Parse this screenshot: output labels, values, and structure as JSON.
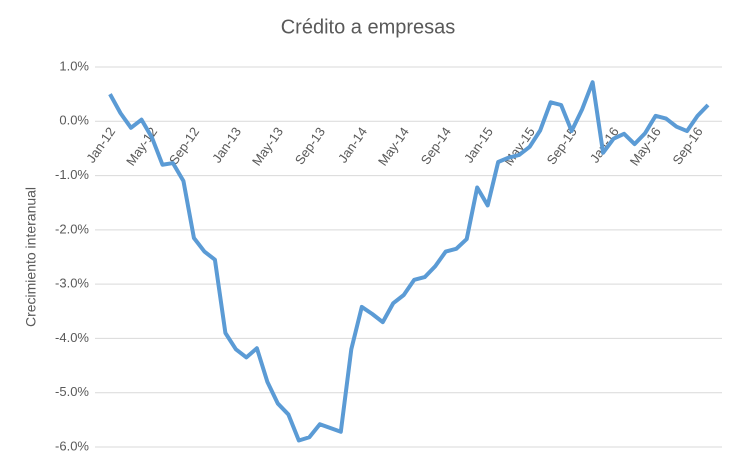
{
  "chart_data": {
    "type": "line",
    "title": "Crédito a empresas",
    "y_label": "Crecimiento interanual",
    "categories": [
      "Jan-12",
      null,
      null,
      null,
      "May-12",
      null,
      null,
      null,
      "Sep-12",
      null,
      null,
      null,
      "Jan-13",
      null,
      null,
      null,
      "May-13",
      null,
      null,
      null,
      "Sep-13",
      null,
      null,
      null,
      "Jan-14",
      null,
      null,
      null,
      "May-14",
      null,
      null,
      null,
      "Sep-14",
      null,
      null,
      null,
      "Jan-15",
      null,
      null,
      null,
      "May-15",
      null,
      null,
      null,
      "Sep-15",
      null,
      null,
      null,
      "Jan-16",
      null,
      null,
      null,
      "May-16",
      null,
      null,
      null,
      "Sep-16",
      null
    ],
    "series": [
      {
        "color": "#5b9bd5",
        "values": [
          0.5,
          0.15,
          -0.12,
          0.03,
          -0.3,
          -0.8,
          -0.77,
          -1.1,
          -2.15,
          -2.4,
          -2.55,
          -3.9,
          -4.2,
          -4.35,
          -4.18,
          -4.8,
          -5.2,
          -5.4,
          -5.88,
          -5.82,
          -5.58,
          -5.65,
          -5.72,
          -4.2,
          -3.42,
          -3.55,
          -3.7,
          -3.35,
          -3.2,
          -2.92,
          -2.87,
          -2.67,
          -2.4,
          -2.35,
          -2.17,
          -1.22,
          -1.55,
          -0.75,
          -0.67,
          -0.62,
          -0.47,
          -0.17,
          0.35,
          0.3,
          -0.18,
          0.22,
          0.72,
          -0.58,
          -0.32,
          -0.23,
          -0.42,
          -0.22,
          0.1,
          0.05,
          -0.1,
          -0.18,
          0.1,
          0.3
        ]
      }
    ],
    "ylim": [
      -6,
      1
    ],
    "yticks": [
      {
        "value": -6,
        "label": "-6.0%"
      },
      {
        "value": -5,
        "label": "-5.0%"
      },
      {
        "value": -4,
        "label": "-4.0%"
      },
      {
        "value": -3,
        "label": "-3.0%"
      },
      {
        "value": -2,
        "label": "-2.0%"
      },
      {
        "value": -1,
        "label": "-1.0%"
      },
      {
        "value": 0,
        "label": "0.0%"
      },
      {
        "value": 1,
        "label": "1.0%"
      }
    ],
    "grid": true
  }
}
